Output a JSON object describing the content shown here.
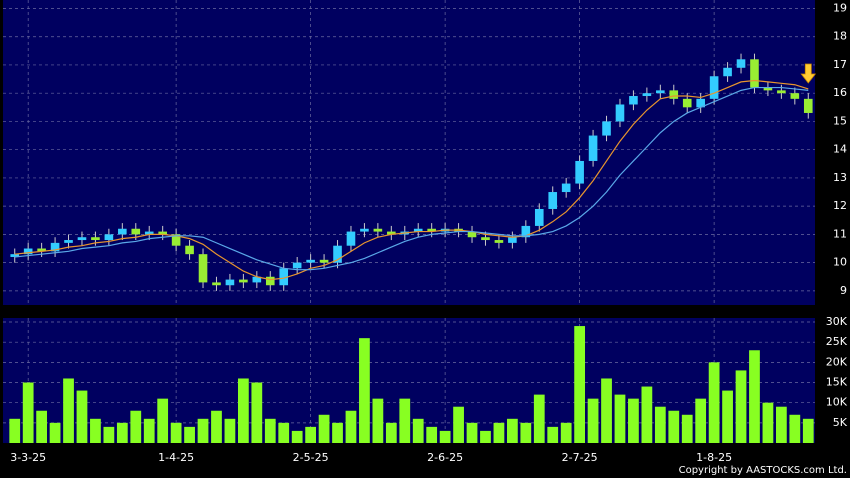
{
  "chart_data": [
    {
      "type": "candlestick",
      "categories": [
        null,
        "3-3-25",
        null,
        null,
        null,
        null,
        null,
        null,
        null,
        null,
        null,
        null,
        "1-4-25",
        null,
        null,
        null,
        null,
        null,
        null,
        null,
        null,
        null,
        "2-5-25",
        null,
        null,
        null,
        null,
        null,
        null,
        null,
        null,
        null,
        "2-6-25",
        null,
        null,
        null,
        null,
        null,
        null,
        null,
        null,
        null,
        "2-7-25",
        null,
        null,
        null,
        null,
        null,
        null,
        null,
        null,
        null,
        "1-8-25",
        null,
        null,
        null,
        null,
        null,
        null,
        null
      ],
      "open": [
        10.2,
        10.3,
        10.5,
        10.4,
        10.7,
        10.8,
        10.9,
        10.8,
        11.0,
        11.2,
        11.0,
        11.1,
        11.0,
        10.6,
        10.3,
        9.3,
        9.2,
        9.4,
        9.3,
        9.5,
        9.2,
        9.8,
        10.0,
        10.1,
        10.0,
        10.6,
        11.1,
        11.2,
        11.1,
        11.0,
        11.1,
        11.2,
        11.1,
        11.2,
        11.1,
        10.9,
        10.8,
        10.7,
        10.9,
        11.3,
        11.9,
        12.5,
        12.8,
        13.6,
        14.5,
        15.0,
        15.6,
        15.9,
        16.0,
        16.1,
        15.8,
        15.5,
        15.8,
        16.6,
        16.9,
        17.2,
        16.2,
        16.1,
        16.0,
        15.8
      ],
      "high": [
        10.5,
        10.7,
        10.7,
        10.9,
        11.0,
        11.1,
        11.1,
        11.2,
        11.4,
        11.4,
        11.3,
        11.3,
        11.2,
        10.8,
        10.5,
        9.5,
        9.6,
        9.6,
        9.7,
        9.7,
        10.0,
        10.2,
        10.3,
        10.3,
        10.8,
        11.3,
        11.4,
        11.4,
        11.3,
        11.3,
        11.4,
        11.4,
        11.4,
        11.4,
        11.3,
        11.1,
        11.0,
        11.1,
        11.5,
        12.1,
        12.7,
        13.0,
        13.8,
        14.7,
        15.2,
        15.8,
        16.1,
        16.2,
        16.3,
        16.3,
        16.0,
        16.0,
        16.8,
        17.1,
        17.4,
        17.4,
        16.4,
        16.3,
        16.2,
        16.0
      ],
      "low": [
        10.0,
        10.1,
        10.2,
        10.2,
        10.5,
        10.6,
        10.6,
        10.6,
        10.8,
        10.8,
        10.8,
        10.8,
        10.4,
        10.1,
        9.1,
        9.0,
        9.0,
        9.1,
        9.1,
        9.0,
        9.0,
        9.6,
        9.8,
        9.8,
        9.8,
        10.4,
        10.9,
        10.9,
        10.8,
        10.8,
        10.9,
        10.9,
        10.9,
        10.9,
        10.7,
        10.6,
        10.5,
        10.5,
        10.7,
        11.1,
        11.7,
        12.3,
        12.6,
        13.4,
        14.3,
        14.8,
        15.4,
        15.7,
        15.8,
        15.6,
        15.3,
        15.3,
        15.6,
        16.4,
        16.7,
        16.0,
        15.9,
        15.8,
        15.6,
        15.1
      ],
      "close": [
        10.3,
        10.5,
        10.4,
        10.7,
        10.8,
        10.9,
        10.8,
        11.0,
        11.2,
        11.0,
        11.1,
        11.0,
        10.6,
        10.3,
        9.3,
        9.2,
        9.4,
        9.3,
        9.5,
        9.2,
        9.8,
        10.0,
        10.1,
        10.0,
        10.6,
        11.1,
        11.2,
        11.1,
        11.0,
        11.1,
        11.2,
        11.1,
        11.2,
        11.1,
        10.9,
        10.8,
        10.7,
        10.9,
        11.3,
        11.9,
        12.5,
        12.8,
        13.6,
        14.5,
        15.0,
        15.6,
        15.9,
        16.0,
        16.1,
        15.8,
        15.5,
        15.8,
        16.6,
        16.9,
        17.2,
        16.2,
        16.1,
        16.0,
        15.8,
        15.3
      ],
      "up_color": "#33ccff",
      "down_color": "#99ee33",
      "moving_averages": [
        {
          "color": "#e8952e",
          "values": [
            10.3,
            10.35,
            10.4,
            10.45,
            10.55,
            10.6,
            10.7,
            10.75,
            10.85,
            10.9,
            11.0,
            11.0,
            10.95,
            10.85,
            10.65,
            10.3,
            10.0,
            9.7,
            9.5,
            9.4,
            9.45,
            9.6,
            9.8,
            9.9,
            10.1,
            10.4,
            10.7,
            10.9,
            11.0,
            11.05,
            11.1,
            11.1,
            11.15,
            11.15,
            11.1,
            11.0,
            10.95,
            10.9,
            10.95,
            11.15,
            11.45,
            11.8,
            12.3,
            12.9,
            13.6,
            14.3,
            14.9,
            15.4,
            15.8,
            15.9,
            15.9,
            15.85,
            16.0,
            16.2,
            16.4,
            16.45,
            16.4,
            16.35,
            16.3,
            16.15
          ]
        },
        {
          "color": "#5aa8e8",
          "values": [
            10.2,
            10.25,
            10.3,
            10.35,
            10.4,
            10.5,
            10.55,
            10.6,
            10.7,
            10.75,
            10.85,
            10.9,
            10.95,
            10.95,
            10.9,
            10.7,
            10.5,
            10.3,
            10.1,
            9.95,
            9.8,
            9.75,
            9.75,
            9.8,
            9.9,
            10.0,
            10.15,
            10.35,
            10.55,
            10.75,
            10.9,
            11.0,
            11.05,
            11.1,
            11.1,
            11.05,
            11.0,
            10.95,
            10.95,
            11.0,
            11.1,
            11.3,
            11.6,
            12.0,
            12.5,
            13.1,
            13.6,
            14.1,
            14.6,
            15.0,
            15.3,
            15.5,
            15.7,
            15.9,
            16.1,
            16.2,
            16.2,
            16.2,
            16.15,
            16.1
          ]
        }
      ],
      "ylim": [
        8.5,
        19.3
      ],
      "yticks": [
        9,
        10,
        11,
        12,
        13,
        14,
        15,
        16,
        17,
        18,
        19
      ],
      "grid": true
    },
    {
      "type": "bar",
      "values": [
        6000,
        15000,
        8000,
        5000,
        16000,
        13000,
        6000,
        4000,
        5000,
        8000,
        6000,
        11000,
        5000,
        4000,
        6000,
        8000,
        6000,
        16000,
        15000,
        6000,
        5000,
        3000,
        4000,
        7000,
        5000,
        8000,
        26000,
        11000,
        5000,
        11000,
        6000,
        4000,
        3000,
        9000,
        5000,
        3000,
        5000,
        6000,
        5000,
        12000,
        4000,
        5000,
        29000,
        11000,
        16000,
        12000,
        11000,
        14000,
        9000,
        8000,
        7000,
        11000,
        20000,
        13000,
        18000,
        23000,
        10000,
        9000,
        7000,
        6000
      ],
      "color": "#88ff22",
      "ylim": [
        0,
        31000
      ],
      "yticks": [
        {
          "value": 5000,
          "label": "5K"
        },
        {
          "value": 10000,
          "label": "10K"
        },
        {
          "value": 15000,
          "label": "15K"
        },
        {
          "value": 20000,
          "label": "20K"
        },
        {
          "value": 25000,
          "label": "25K"
        },
        {
          "value": 30000,
          "label": "30K"
        }
      ],
      "grid": true
    }
  ],
  "copyright": "Copyright by AASTOCKS.com Ltd."
}
